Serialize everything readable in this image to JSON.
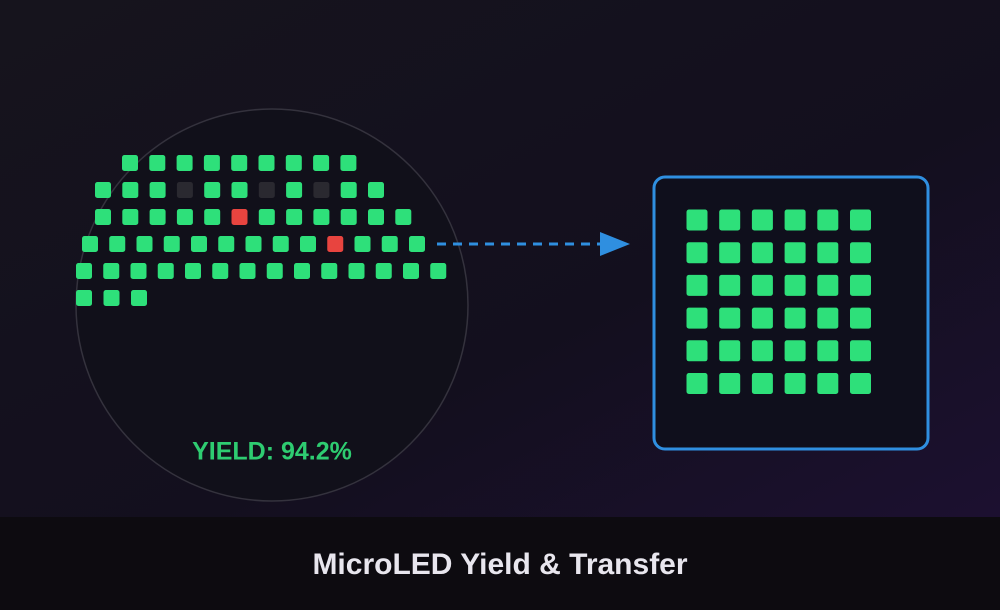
{
  "wafer": {
    "yield_label": "YIELD: 94.2%"
  },
  "caption": "MicroLED Yield & Transfer"
}
